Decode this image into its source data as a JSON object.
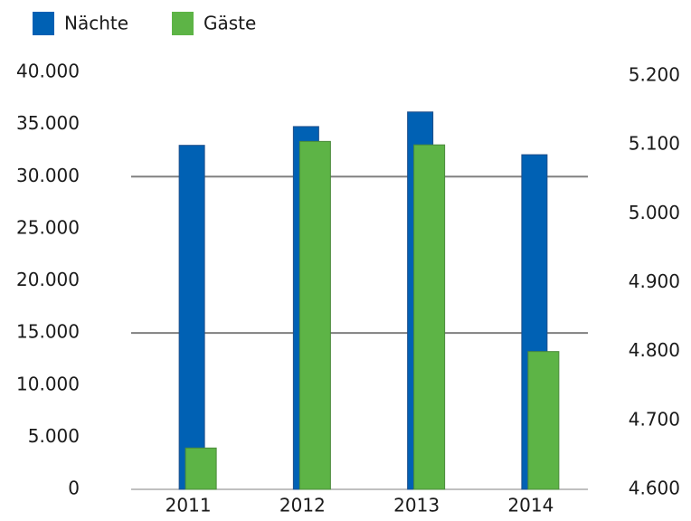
{
  "chart_data": {
    "type": "bar",
    "categories": [
      "2011",
      "2012",
      "2013",
      "2014"
    ],
    "series": [
      {
        "name": "Nächte",
        "color": "#0061b4",
        "values": [
          33000,
          34800,
          36200,
          32100
        ]
      },
      {
        "name": "Gäste",
        "color": "#5db446",
        "axis": "y2",
        "values": [
          4660,
          5105,
          5100,
          4800
        ]
      }
    ],
    "ylim": [
      0,
      40000
    ],
    "yticks": [
      0,
      {
        "value": 5000,
        "label": "5.000"
      },
      {
        "value": 10000,
        "label": "10.000"
      },
      {
        "value": 15000,
        "label": "15.000"
      },
      {
        "value": 20000,
        "label": "20.000"
      },
      {
        "value": 25000,
        "label": "25.000"
      },
      {
        "value": 30000,
        "label": "30.000"
      },
      {
        "value": 35000,
        "label": "35.000"
      },
      {
        "value": 40000,
        "label": "40.000"
      }
    ],
    "y2lim": [
      4600,
      5200
    ],
    "y2ticks": [
      {
        "value": 4600,
        "label": "4.600"
      },
      {
        "value": 4700,
        "label": "4.700"
      },
      {
        "value": 4800,
        "label": "4.800"
      },
      {
        "value": 4900,
        "label": "4.900"
      },
      {
        "value": 5000,
        "label": "5.000"
      },
      {
        "value": 5100,
        "label": "5.100"
      },
      {
        "value": 5200,
        "label": "5.200"
      }
    ],
    "grid_lines": [
      15000,
      30000
    ],
    "legend": "top-left"
  }
}
